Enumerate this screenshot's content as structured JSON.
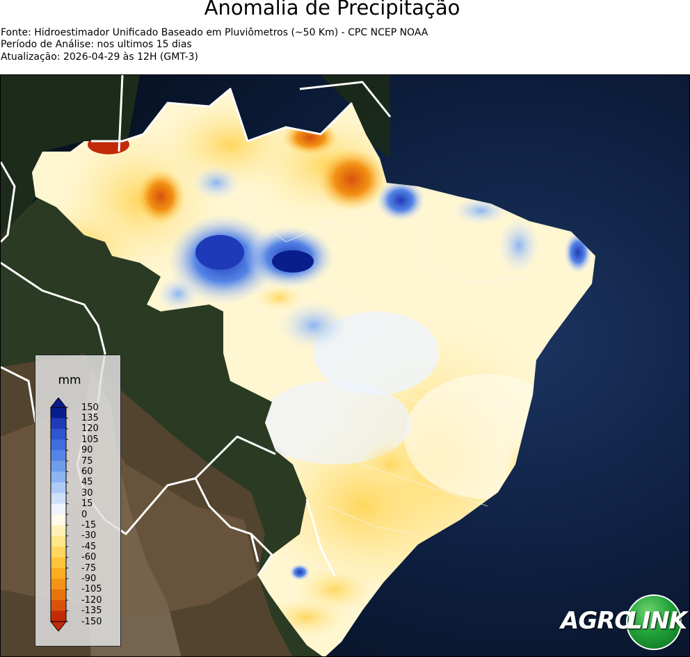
{
  "header": {
    "title": "Anomalia de Precipitação",
    "source": "Fonte: Hidroestimador Unificado Baseado em Pluviômetros (~50 Km) - CPC NCEP NOAA",
    "period": "Período de Análise: nos ultimos 15 dias",
    "update": "Atualização: 2026-04-29 às 12H (GMT-3)"
  },
  "legend": {
    "unit": "mm",
    "ticks": [
      "150",
      "135",
      "120",
      "105",
      "90",
      "75",
      "60",
      "45",
      "30",
      "15",
      "0",
      "-15",
      "-30",
      "-45",
      "-60",
      "-75",
      "-90",
      "-105",
      "-120",
      "-135",
      "-150"
    ],
    "colors": [
      "#0a1d8c",
      "#1f3ab8",
      "#2f55d0",
      "#3f6ede",
      "#5585e6",
      "#6f9dec",
      "#8db5f1",
      "#aecbf6",
      "#cfe0f9",
      "#eef4fd",
      "#fffbe8",
      "#fff2b8",
      "#ffe68a",
      "#ffd75f",
      "#ffc53a",
      "#fbad20",
      "#f39214",
      "#e8740e",
      "#d8520b",
      "#c22a08"
    ]
  },
  "logo": {
    "part1": "AGRO",
    "part2": "LINK"
  },
  "colors": {
    "ocean": "#0b1a33",
    "land_dark": "#1f2e1c",
    "land_brown": "#6b5238",
    "anomaly_neutral": "#fffbea"
  }
}
